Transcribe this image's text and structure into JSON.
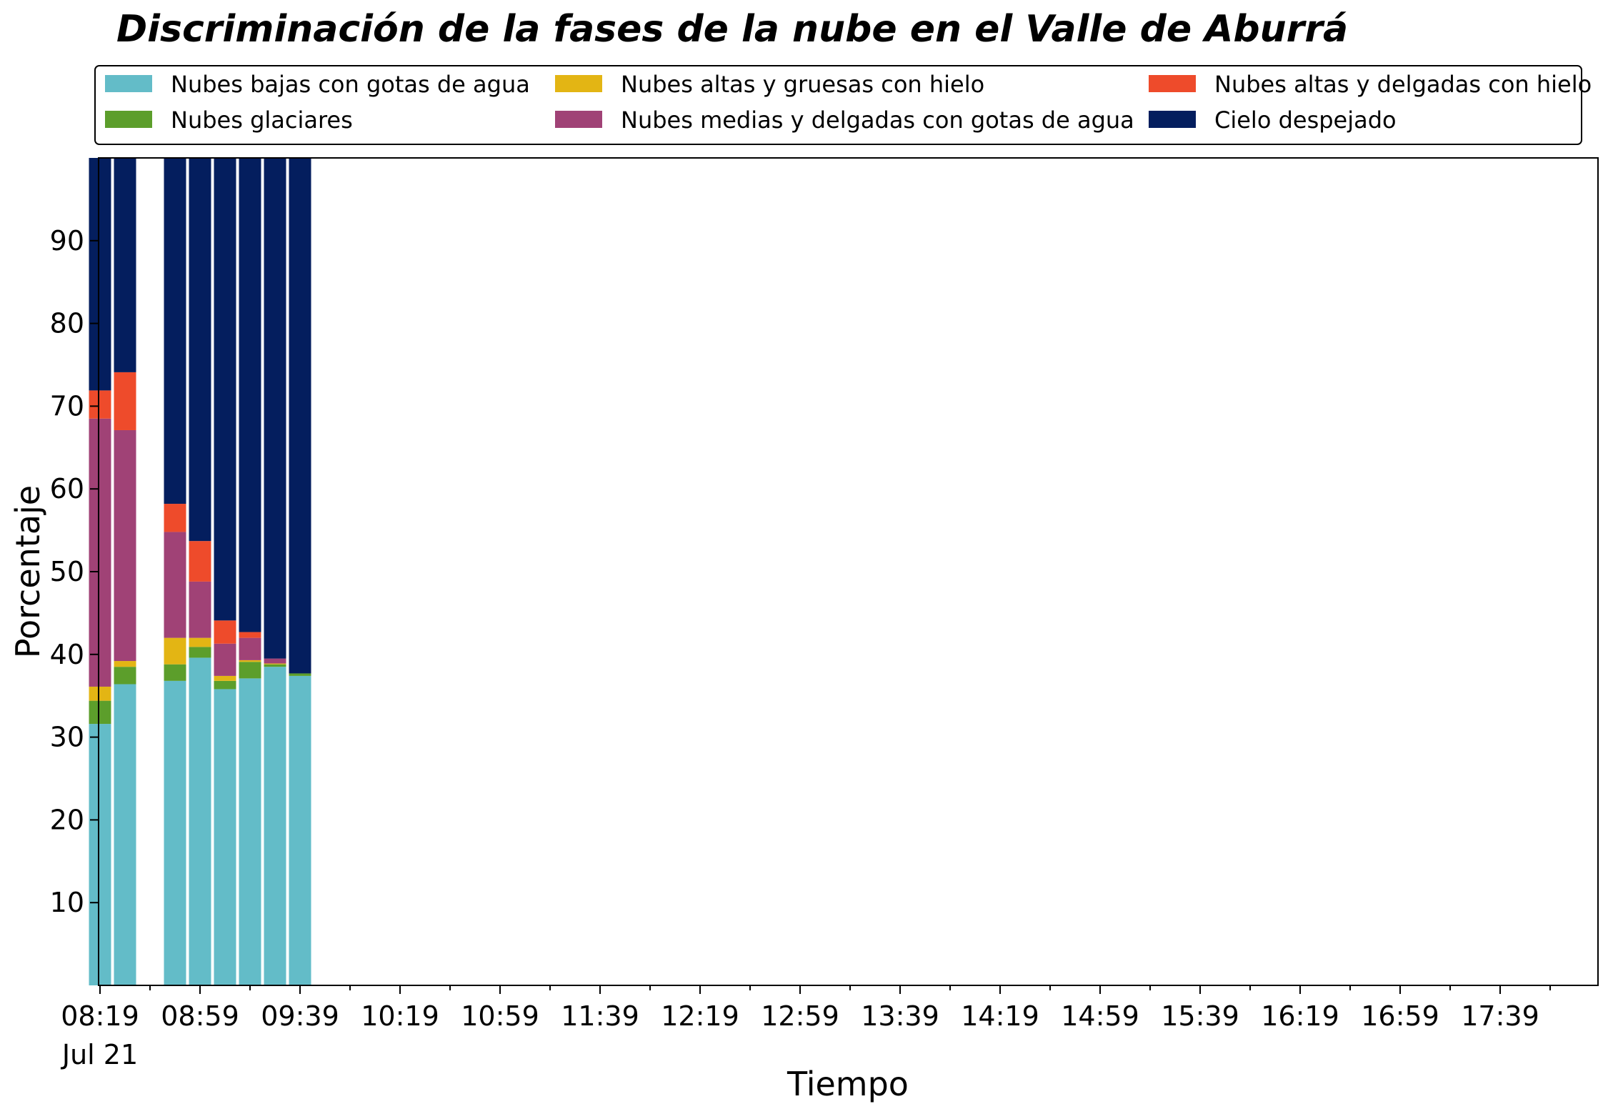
{
  "chart_data": {
    "type": "bar",
    "stacked": true,
    "title": "Discriminación de la fases de la nube en el Valle de Aburrá",
    "xlabel": "Tiempo",
    "ylabel": "Porcentaje",
    "ylim": [
      0,
      100
    ],
    "yticks": [
      10,
      20,
      30,
      40,
      50,
      60,
      70,
      80,
      90
    ],
    "grid": false,
    "legend_position": "top",
    "x_unit": "minutes",
    "x_range": [
      0,
      588
    ],
    "x_tick_labels": [
      "08:19",
      "08:59",
      "09:39",
      "10:19",
      "10:59",
      "11:39",
      "12:19",
      "12:59",
      "13:39",
      "14:19",
      "14:59",
      "15:39",
      "16:19",
      "16:59",
      "17:39"
    ],
    "x_tick_sublabel": "Jul 21",
    "x": [
      "08:19",
      "08:29",
      "08:49",
      "08:59",
      "09:09",
      "09:19",
      "09:29",
      "09:39"
    ],
    "series": [
      {
        "name": "Nubes bajas con gotas de agua",
        "color": "#63bcc8",
        "values": [
          31.6,
          36.4,
          36.8,
          39.6,
          35.8,
          37.1,
          38.5,
          37.4
        ]
      },
      {
        "name": "Nubes glaciares",
        "color": "#5c9e2b",
        "values": [
          2.8,
          2.1,
          2.0,
          1.3,
          1.0,
          2.0,
          0.3,
          0.3
        ]
      },
      {
        "name": "Nubes altas y gruesas con hielo",
        "color": "#e3b514",
        "values": [
          1.7,
          0.7,
          3.2,
          1.1,
          0.6,
          0.2,
          0.1,
          0.0
        ]
      },
      {
        "name": "Nubes medias y delgadas con gotas de agua",
        "color": "#a04276",
        "values": [
          32.4,
          27.9,
          12.8,
          6.8,
          3.9,
          2.7,
          0.6,
          0.0
        ]
      },
      {
        "name": "Nubes altas y delgadas con hielo",
        "color": "#ee4b2b",
        "values": [
          3.4,
          7.0,
          3.4,
          4.9,
          2.8,
          0.7,
          0.0,
          0.0
        ]
      },
      {
        "name": "Cielo despejado",
        "color": "#041e5e",
        "values": [
          28.1,
          25.9,
          41.8,
          46.3,
          55.9,
          57.3,
          60.5,
          62.3
        ]
      }
    ]
  }
}
